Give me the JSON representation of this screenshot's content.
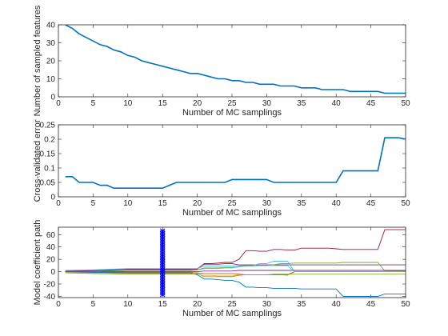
{
  "chart_data": [
    {
      "type": "line",
      "xlabel": "Number of MC samplings",
      "ylabel": "Number of sampled features",
      "xlim": [
        0,
        50
      ],
      "ylim": [
        0,
        40
      ],
      "xticks": [
        0,
        5,
        10,
        15,
        20,
        25,
        30,
        35,
        40,
        45,
        50
      ],
      "yticks": [
        0,
        10,
        20,
        30,
        40
      ],
      "ytick_labels": [
        "0",
        "10",
        "20",
        "30",
        "40"
      ],
      "series": [
        {
          "color": "#0072bd",
          "x": [
            1,
            2,
            3,
            4,
            5,
            6,
            7,
            8,
            9,
            10,
            11,
            12,
            13,
            14,
            15,
            16,
            17,
            18,
            19,
            20,
            21,
            22,
            23,
            24,
            25,
            26,
            27,
            28,
            29,
            30,
            31,
            32,
            33,
            34,
            35,
            36,
            37,
            38,
            39,
            40,
            41,
            42,
            43,
            44,
            45,
            46,
            47,
            48,
            49,
            50
          ],
          "y": [
            40,
            38,
            35,
            33,
            31,
            29,
            28,
            26,
            25,
            23,
            22,
            20,
            19,
            18,
            17,
            16,
            15,
            14,
            13,
            13,
            12,
            11,
            10,
            10,
            9,
            9,
            8,
            8,
            7,
            7,
            7,
            6,
            6,
            6,
            5,
            5,
            5,
            4,
            4,
            4,
            4,
            3,
            3,
            3,
            3,
            3,
            2,
            2,
            2,
            2
          ]
        }
      ]
    },
    {
      "type": "line",
      "xlabel": "Number of MC samplings",
      "ylabel": "Cross-validated error",
      "xlim": [
        0,
        50
      ],
      "ylim": [
        0,
        0.25
      ],
      "xticks": [
        0,
        5,
        10,
        15,
        20,
        25,
        30,
        35,
        40,
        45,
        50
      ],
      "yticks": [
        0,
        0.05,
        0.1,
        0.15,
        0.2,
        0.25
      ],
      "ytick_labels": [
        "0",
        "0.05",
        "0.1",
        "0.15",
        "0.2",
        "0.25"
      ],
      "series": [
        {
          "color": "#0072bd",
          "x": [
            1,
            2,
            3,
            4,
            5,
            6,
            7,
            8,
            9,
            10,
            11,
            12,
            13,
            14,
            15,
            16,
            17,
            18,
            19,
            20,
            21,
            22,
            23,
            24,
            25,
            26,
            27,
            28,
            29,
            30,
            31,
            32,
            33,
            34,
            35,
            36,
            37,
            38,
            39,
            40,
            41,
            42,
            43,
            44,
            45,
            46,
            47,
            48,
            49,
            50
          ],
          "y": [
            0.07,
            0.07,
            0.05,
            0.05,
            0.05,
            0.04,
            0.04,
            0.03,
            0.03,
            0.03,
            0.03,
            0.03,
            0.03,
            0.03,
            0.03,
            0.04,
            0.05,
            0.05,
            0.05,
            0.05,
            0.05,
            0.05,
            0.05,
            0.05,
            0.06,
            0.06,
            0.06,
            0.06,
            0.06,
            0.06,
            0.05,
            0.05,
            0.05,
            0.05,
            0.05,
            0.05,
            0.05,
            0.05,
            0.05,
            0.05,
            0.09,
            0.09,
            0.09,
            0.09,
            0.09,
            0.09,
            0.205,
            0.205,
            0.205,
            0.2
          ]
        }
      ]
    },
    {
      "type": "line",
      "xlabel": "Number of MC samplings",
      "ylabel": "Model coefficient path",
      "xlim": [
        0,
        50
      ],
      "ylim": [
        -42,
        72
      ],
      "xticks": [
        0,
        5,
        10,
        15,
        20,
        25,
        30,
        35,
        40,
        45,
        50
      ],
      "yticks": [
        -40,
        -20,
        0,
        20,
        40,
        60
      ],
      "ytick_labels": [
        "-40",
        "-20",
        "0",
        "20",
        "40",
        "60"
      ],
      "marker": {
        "x": 15,
        "ymin": -38,
        "ymax": 68,
        "color": "#0000ff",
        "symbol": "x"
      },
      "series": [
        {
          "color": "#a2142f",
          "x": [
            1,
            5,
            10,
            15,
            19,
            20,
            21,
            22,
            23,
            24,
            25,
            26,
            27,
            28,
            29,
            30,
            31,
            32,
            33,
            34,
            35,
            36,
            37,
            38,
            39,
            40,
            41,
            42,
            43,
            44,
            45,
            46,
            47,
            48,
            49,
            50
          ],
          "y": [
            0,
            2,
            3,
            3,
            3,
            4,
            13,
            13,
            14,
            15,
            15,
            20,
            34,
            34,
            33,
            33,
            36,
            36,
            35,
            35,
            38,
            38,
            38,
            38,
            38,
            37,
            36,
            36,
            36,
            36,
            36,
            36,
            68,
            68,
            68,
            68
          ]
        },
        {
          "color": "#7e2f8e",
          "x": [
            1,
            5,
            10,
            15,
            19,
            20,
            21,
            22,
            23,
            24,
            25,
            26,
            27,
            28,
            29,
            30,
            31,
            32,
            33,
            34,
            35,
            36,
            37,
            38,
            39,
            40,
            41,
            42,
            43,
            44,
            45,
            46,
            47,
            48,
            49,
            50
          ],
          "y": [
            1,
            2,
            4,
            4,
            4,
            5,
            12,
            12,
            12,
            13,
            13,
            11,
            11,
            11,
            11,
            11,
            11,
            11,
            11,
            11,
            11,
            11,
            11,
            11,
            11,
            11,
            11,
            11,
            11,
            11,
            11,
            11,
            11,
            11,
            11,
            11
          ]
        },
        {
          "color": "#4dbeee",
          "x": [
            1,
            5,
            10,
            15,
            19,
            20,
            21,
            22,
            23,
            24,
            25,
            26,
            27,
            28,
            29,
            30,
            31,
            32,
            33,
            34,
            35,
            36,
            37,
            38,
            39,
            40,
            41,
            42,
            43,
            44,
            45,
            46,
            47,
            48,
            49,
            50
          ],
          "y": [
            0,
            1,
            2,
            2,
            2,
            3,
            5,
            5,
            5,
            6,
            6,
            8,
            10,
            10,
            13,
            13,
            17,
            17,
            17,
            0,
            0,
            0,
            0,
            0,
            0,
            0,
            0,
            0,
            0,
            0,
            0,
            0,
            0,
            0,
            0,
            0
          ]
        },
        {
          "color": "#77ac30",
          "x": [
            1,
            5,
            10,
            15,
            19,
            20,
            21,
            22,
            23,
            24,
            25,
            26,
            27,
            28,
            29,
            30,
            31,
            32,
            33,
            34,
            35,
            36,
            37,
            38,
            39,
            40,
            41,
            42,
            43,
            44,
            45,
            46,
            47,
            48,
            49,
            50
          ],
          "y": [
            0,
            1,
            2,
            2,
            2,
            3,
            6,
            6,
            6,
            7,
            7,
            8,
            9,
            9,
            10,
            10,
            11,
            13,
            13,
            14,
            14,
            14,
            14,
            14,
            14,
            14,
            15,
            15,
            15,
            15,
            15,
            15,
            1,
            1,
            1,
            1
          ]
        },
        {
          "color": "#edb120",
          "x": [
            1,
            5,
            10,
            15,
            19,
            20,
            21,
            22,
            23,
            24,
            25,
            26,
            27,
            28,
            29,
            30,
            31,
            32,
            33,
            34,
            35,
            36,
            37,
            38,
            39,
            40,
            41,
            42,
            43,
            44,
            45,
            46,
            47,
            48,
            49,
            50
          ],
          "y": [
            -1,
            -2,
            -3,
            -3,
            -3,
            -4,
            -6,
            -6,
            -7,
            -7,
            -7,
            -5,
            -5,
            -5,
            -5,
            -5,
            -5,
            -5,
            -6,
            0,
            0,
            0,
            0,
            0,
            0,
            0,
            0,
            0,
            0,
            0,
            0,
            0,
            0,
            0,
            0,
            0
          ]
        },
        {
          "color": "#d95319",
          "x": [
            1,
            5,
            10,
            15,
            19,
            20,
            21,
            22,
            23,
            24,
            25,
            26,
            27,
            28,
            29,
            30,
            31,
            32,
            33,
            34,
            35,
            36,
            37,
            38,
            39,
            40,
            41,
            42,
            43,
            44,
            45,
            46,
            47,
            48,
            49,
            50
          ],
          "y": [
            0,
            0,
            -1,
            -1,
            -1,
            -2,
            -3,
            -3,
            -3,
            -3,
            -3,
            -4,
            -5,
            -5,
            -5,
            -5,
            -5,
            -5,
            -5,
            0,
            0,
            0,
            0,
            0,
            0,
            0,
            0,
            0,
            0,
            0,
            0,
            0,
            0,
            0,
            0,
            0
          ]
        },
        {
          "color": "#0072bd",
          "x": [
            1,
            5,
            10,
            15,
            19,
            20,
            21,
            22,
            23,
            24,
            25,
            26,
            27,
            28,
            29,
            30,
            31,
            32,
            33,
            34,
            35,
            36,
            37,
            38,
            39,
            40,
            41,
            42,
            43,
            44,
            45,
            46,
            47,
            48,
            49,
            50
          ],
          "y": [
            0,
            -1,
            -2,
            -2,
            -2,
            -5,
            -12,
            -12,
            -13,
            -14,
            -14,
            -17,
            -25,
            -25,
            -26,
            -26,
            -27,
            -27,
            -27,
            -27,
            -28,
            -28,
            -28,
            -28,
            -28,
            -28,
            -40,
            -40,
            -40,
            -40,
            -40,
            -40,
            -36,
            -36,
            -36,
            -36
          ]
        },
        {
          "color": "#7e2f8e",
          "x": [
            1,
            5,
            10,
            15,
            19,
            20,
            21,
            22,
            23,
            24,
            25,
            26,
            27,
            28,
            29,
            30,
            31,
            32,
            33,
            34,
            35,
            36,
            37,
            38,
            39,
            40,
            41,
            42,
            43,
            44,
            45,
            46,
            47,
            48,
            49,
            50
          ],
          "y": [
            1,
            1,
            0,
            0,
            0,
            0,
            1,
            1,
            1,
            1,
            1,
            2,
            2,
            2,
            2,
            2,
            2,
            2,
            2,
            2,
            2,
            2,
            2,
            2,
            2,
            2,
            2,
            2,
            2,
            2,
            2,
            2,
            2,
            2,
            2,
            2
          ]
        },
        {
          "color": "#77ac30",
          "x": [
            1,
            5,
            10,
            15,
            19,
            20,
            21,
            22,
            23,
            24,
            25,
            26,
            27,
            28,
            29,
            30,
            31,
            32,
            33,
            34,
            35,
            36,
            37,
            38,
            39,
            40,
            41,
            42,
            43,
            44,
            45,
            46,
            47,
            48,
            49,
            50
          ],
          "y": [
            -2,
            -3,
            -4,
            -4,
            -4,
            -3,
            -8,
            -8,
            -8,
            -8,
            -8,
            -6,
            -5,
            -5,
            -5,
            -5,
            -4,
            -4,
            -4,
            -4,
            -4,
            -4,
            -4,
            -4,
            -4,
            -4,
            -4,
            -4,
            -4,
            -4,
            -4,
            -4,
            -4,
            -4,
            -4,
            -4
          ]
        },
        {
          "color": "#4dbeee",
          "x": [
            1,
            5,
            10,
            15,
            19,
            20,
            21,
            22,
            23,
            24,
            25,
            26,
            27,
            28,
            29,
            30,
            31,
            32,
            33,
            34,
            35,
            36,
            37,
            38,
            39,
            40,
            41,
            42,
            43,
            44,
            45,
            46,
            47,
            48,
            49,
            50
          ],
          "y": [
            2,
            3,
            5,
            5,
            5,
            5,
            9,
            9,
            9,
            9,
            9,
            10,
            10,
            10,
            10,
            10,
            10,
            10,
            10,
            0,
            0,
            0,
            0,
            0,
            0,
            0,
            0,
            0,
            0,
            0,
            0,
            0,
            0,
            0,
            0,
            0
          ]
        }
      ]
    }
  ]
}
